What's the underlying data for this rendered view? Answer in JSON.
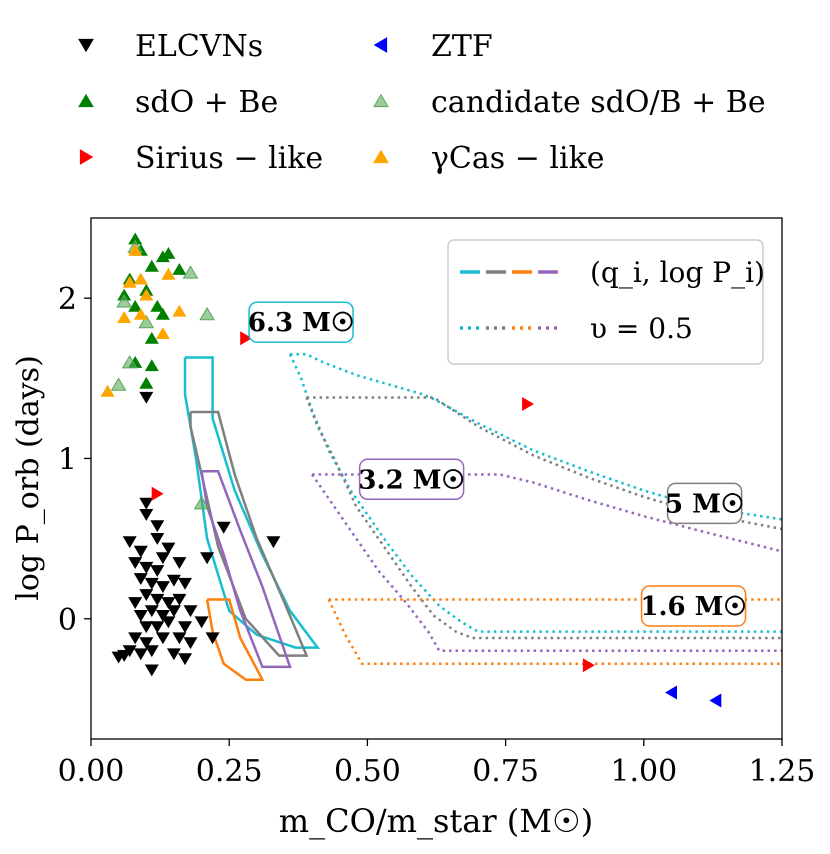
{
  "chart_data": {
    "type": "scatter",
    "xlabel": "m_CO/m_star (M☉)",
    "ylabel": "log P_orb (days)",
    "xlim": [
      0.0,
      1.25
    ],
    "ylim": [
      -0.75,
      2.5
    ],
    "x_ticks": [
      "0.00",
      "0.25",
      "0.50",
      "0.75",
      "1.00",
      "1.25"
    ],
    "y_ticks": [
      "0",
      "1",
      "2"
    ],
    "grid": false,
    "top_legend": [
      {
        "label": "ELCVNs",
        "marker": "triangle-down",
        "color": "#000000"
      },
      {
        "label": "ZTF",
        "marker": "triangle-left",
        "color": "#0000ff"
      },
      {
        "label": "sdO + Be",
        "marker": "triangle-up",
        "color": "#008000"
      },
      {
        "label": "candidate sdO/B + Be",
        "marker": "triangle-up",
        "color": "#5aa85a"
      },
      {
        "label": "Sirius − like",
        "marker": "triangle-right",
        "color": "#ff0000"
      },
      {
        "label": "γCas − like",
        "marker": "triangle-up",
        "color": "#ffa500"
      }
    ],
    "inner_legend": [
      {
        "label": "(q_i, log P_i)",
        "style": "dashed",
        "colors": [
          "#17becf",
          "#7f7f7f",
          "#ff7f0e",
          "#9467bd"
        ]
      },
      {
        "label": "υ = 0.5",
        "style": "dotted",
        "colors": [
          "#17becf",
          "#7f7f7f",
          "#ff7f0e",
          "#9467bd"
        ]
      }
    ],
    "mass_labels": [
      {
        "text": "6.3 M☉",
        "color": "#17becf",
        "x": 0.38,
        "y": 1.85
      },
      {
        "text": "3.2 M☉",
        "color": "#9467bd",
        "x": 0.58,
        "y": 0.87
      },
      {
        "text": "5 M☉",
        "color": "#7f7f7f",
        "x": 1.11,
        "y": 0.72
      },
      {
        "text": "1.6 M☉",
        "color": "#ff7f0e",
        "x": 1.09,
        "y": 0.08
      }
    ],
    "series": [
      {
        "name": "ELCVNs",
        "marker": "triangle-down",
        "color": "#000000",
        "points": [
          [
            0.1,
            1.38
          ],
          [
            0.1,
            0.72
          ],
          [
            0.1,
            0.65
          ],
          [
            0.12,
            0.58
          ],
          [
            0.07,
            0.48
          ],
          [
            0.09,
            0.42
          ],
          [
            0.12,
            0.5
          ],
          [
            0.14,
            0.44
          ],
          [
            0.08,
            0.35
          ],
          [
            0.1,
            0.32
          ],
          [
            0.12,
            0.3
          ],
          [
            0.13,
            0.38
          ],
          [
            0.16,
            0.35
          ],
          [
            0.09,
            0.25
          ],
          [
            0.11,
            0.22
          ],
          [
            0.13,
            0.2
          ],
          [
            0.15,
            0.24
          ],
          [
            0.17,
            0.22
          ],
          [
            0.1,
            0.15
          ],
          [
            0.12,
            0.12
          ],
          [
            0.08,
            0.1
          ],
          [
            0.14,
            0.1
          ],
          [
            0.16,
            0.12
          ],
          [
            0.09,
            0.02
          ],
          [
            0.11,
            0.05
          ],
          [
            0.13,
            0.02
          ],
          [
            0.15,
            0.05
          ],
          [
            0.18,
            0.05
          ],
          [
            0.1,
            -0.05
          ],
          [
            0.12,
            -0.05
          ],
          [
            0.14,
            -0.02
          ],
          [
            0.17,
            -0.05
          ],
          [
            0.2,
            -0.02
          ],
          [
            0.08,
            -0.12
          ],
          [
            0.1,
            -0.15
          ],
          [
            0.13,
            -0.12
          ],
          [
            0.16,
            -0.12
          ],
          [
            0.18,
            -0.15
          ],
          [
            0.22,
            -0.12
          ],
          [
            0.07,
            -0.2
          ],
          [
            0.09,
            -0.22
          ],
          [
            0.11,
            -0.2
          ],
          [
            0.15,
            -0.22
          ],
          [
            0.17,
            -0.25
          ],
          [
            0.06,
            -0.23
          ],
          [
            0.05,
            -0.24
          ],
          [
            0.11,
            -0.32
          ],
          [
            0.24,
            0.57
          ],
          [
            0.21,
            0.38
          ],
          [
            0.33,
            0.48
          ]
        ]
      },
      {
        "name": "sdO + Be",
        "marker": "triangle-up",
        "color": "#008000",
        "points": [
          [
            0.08,
            2.37
          ],
          [
            0.09,
            2.3
          ],
          [
            0.11,
            2.2
          ],
          [
            0.13,
            2.26
          ],
          [
            0.14,
            2.28
          ],
          [
            0.16,
            2.18
          ],
          [
            0.07,
            2.12
          ],
          [
            0.1,
            2.05
          ],
          [
            0.06,
            2.02
          ],
          [
            0.08,
            1.95
          ],
          [
            0.12,
            1.95
          ],
          [
            0.13,
            1.9
          ],
          [
            0.11,
            1.75
          ],
          [
            0.08,
            1.6
          ],
          [
            0.11,
            1.58
          ],
          [
            0.1,
            1.47
          ]
        ]
      },
      {
        "name": "candidate sdO/B + Be",
        "marker": "triangle-up",
        "color": "#5aa85a",
        "alpha": 0.6,
        "points": [
          [
            0.08,
            2.32
          ],
          [
            0.18,
            2.16
          ],
          [
            0.06,
            1.98
          ],
          [
            0.1,
            1.85
          ],
          [
            0.21,
            1.9
          ],
          [
            0.07,
            1.6
          ],
          [
            0.05,
            1.46
          ],
          [
            0.2,
            0.72
          ]
        ]
      },
      {
        "name": "γCas − like",
        "marker": "triangle-up",
        "color": "#ffa500",
        "points": [
          [
            0.08,
            2.3
          ],
          [
            0.07,
            2.1
          ],
          [
            0.09,
            2.12
          ],
          [
            0.14,
            2.15
          ],
          [
            0.1,
            2.02
          ],
          [
            0.06,
            1.88
          ],
          [
            0.09,
            1.9
          ],
          [
            0.16,
            1.92
          ],
          [
            0.13,
            1.78
          ],
          [
            0.03,
            1.42
          ]
        ]
      },
      {
        "name": "Sirius − like",
        "marker": "triangle-right",
        "color": "#ff0000",
        "points": [
          [
            0.28,
            1.75
          ],
          [
            0.79,
            1.34
          ],
          [
            0.12,
            0.78
          ],
          [
            0.9,
            -0.29
          ]
        ]
      },
      {
        "name": "ZTF",
        "marker": "triangle-left",
        "color": "#0000ff",
        "points": [
          [
            1.05,
            -0.46
          ],
          [
            1.13,
            -0.51
          ]
        ]
      }
    ],
    "solid_regions": [
      {
        "color": "#17becf",
        "points": [
          [
            0.17,
            1.63
          ],
          [
            0.22,
            1.63
          ],
          [
            0.22,
            1.25
          ],
          [
            0.26,
            0.8
          ],
          [
            0.31,
            0.4
          ],
          [
            0.36,
            0.05
          ],
          [
            0.41,
            -0.18
          ],
          [
            0.37,
            -0.18
          ],
          [
            0.3,
            -0.1
          ],
          [
            0.25,
            0.05
          ],
          [
            0.21,
            0.5
          ],
          [
            0.19,
            1.0
          ],
          [
            0.17,
            1.4
          ],
          [
            0.17,
            1.63
          ]
        ]
      },
      {
        "color": "#7f7f7f",
        "points": [
          [
            0.18,
            1.29
          ],
          [
            0.23,
            1.29
          ],
          [
            0.26,
            0.9
          ],
          [
            0.3,
            0.5
          ],
          [
            0.35,
            0.1
          ],
          [
            0.39,
            -0.23
          ],
          [
            0.34,
            -0.23
          ],
          [
            0.28,
            0.0
          ],
          [
            0.23,
            0.45
          ],
          [
            0.2,
            0.9
          ],
          [
            0.18,
            1.2
          ],
          [
            0.18,
            1.29
          ]
        ]
      },
      {
        "color": "#9467bd",
        "points": [
          [
            0.2,
            0.92
          ],
          [
            0.23,
            0.92
          ],
          [
            0.27,
            0.55
          ],
          [
            0.31,
            0.2
          ],
          [
            0.36,
            -0.3
          ],
          [
            0.31,
            -0.3
          ],
          [
            0.27,
            0.05
          ],
          [
            0.24,
            0.4
          ],
          [
            0.21,
            0.7
          ],
          [
            0.2,
            0.92
          ]
        ]
      },
      {
        "color": "#ff7f0e",
        "points": [
          [
            0.21,
            0.12
          ],
          [
            0.25,
            0.12
          ],
          [
            0.27,
            -0.12
          ],
          [
            0.31,
            -0.38
          ],
          [
            0.28,
            -0.38
          ],
          [
            0.24,
            -0.28
          ],
          [
            0.22,
            -0.08
          ],
          [
            0.21,
            0.12
          ]
        ]
      }
    ],
    "dotted_curves": [
      {
        "color": "#17becf",
        "points": [
          [
            0.36,
            1.65
          ],
          [
            0.39,
            1.65
          ],
          [
            0.42,
            1.6
          ],
          [
            0.48,
            1.52
          ],
          [
            0.55,
            1.45
          ],
          [
            0.6,
            1.4
          ],
          [
            0.62,
            1.37
          ],
          [
            0.7,
            1.22
          ],
          [
            0.8,
            1.05
          ],
          [
            0.9,
            0.92
          ],
          [
            1.0,
            0.8
          ],
          [
            1.1,
            0.7
          ],
          [
            1.25,
            0.62
          ]
        ]
      },
      {
        "color": "#17becf",
        "points": [
          [
            0.36,
            1.65
          ],
          [
            0.38,
            1.5
          ],
          [
            0.4,
            1.3
          ],
          [
            0.43,
            1.05
          ],
          [
            0.47,
            0.8
          ],
          [
            0.53,
            0.5
          ],
          [
            0.58,
            0.27
          ],
          [
            0.63,
            0.08
          ],
          [
            0.67,
            -0.02
          ],
          [
            0.7,
            -0.08
          ],
          [
            0.8,
            -0.08
          ],
          [
            1.0,
            -0.08
          ],
          [
            1.25,
            -0.08
          ]
        ]
      },
      {
        "color": "#7f7f7f",
        "points": [
          [
            0.39,
            1.38
          ],
          [
            0.62,
            1.38
          ],
          [
            0.7,
            1.2
          ],
          [
            0.8,
            1.02
          ],
          [
            0.9,
            0.88
          ],
          [
            1.0,
            0.76
          ],
          [
            1.1,
            0.66
          ],
          [
            1.25,
            0.56
          ]
        ]
      },
      {
        "color": "#7f7f7f",
        "points": [
          [
            0.39,
            1.38
          ],
          [
            0.41,
            1.2
          ],
          [
            0.44,
            1.0
          ],
          [
            0.48,
            0.7
          ],
          [
            0.53,
            0.45
          ],
          [
            0.58,
            0.2
          ],
          [
            0.62,
            0.02
          ],
          [
            0.66,
            -0.08
          ],
          [
            0.69,
            -0.12
          ],
          [
            0.8,
            -0.12
          ],
          [
            1.0,
            -0.12
          ],
          [
            1.25,
            -0.12
          ]
        ]
      },
      {
        "color": "#9467bd",
        "points": [
          [
            0.4,
            0.9
          ],
          [
            0.74,
            0.9
          ],
          [
            0.8,
            0.85
          ],
          [
            0.9,
            0.74
          ],
          [
            1.0,
            0.64
          ],
          [
            1.1,
            0.55
          ],
          [
            1.25,
            0.42
          ]
        ]
      },
      {
        "color": "#9467bd",
        "points": [
          [
            0.4,
            0.9
          ],
          [
            0.44,
            0.7
          ],
          [
            0.48,
            0.5
          ],
          [
            0.52,
            0.3
          ],
          [
            0.57,
            0.1
          ],
          [
            0.61,
            -0.08
          ],
          [
            0.63,
            -0.2
          ],
          [
            0.7,
            -0.2
          ],
          [
            0.9,
            -0.2
          ],
          [
            1.25,
            -0.2
          ]
        ]
      },
      {
        "color": "#ff7f0e",
        "points": [
          [
            0.43,
            0.12
          ],
          [
            1.25,
            0.12
          ]
        ]
      },
      {
        "color": "#ff7f0e",
        "points": [
          [
            0.43,
            0.12
          ],
          [
            0.46,
            -0.1
          ],
          [
            0.49,
            -0.28
          ],
          [
            0.6,
            -0.28
          ],
          [
            0.8,
            -0.28
          ],
          [
            1.0,
            -0.28
          ],
          [
            1.25,
            -0.28
          ]
        ]
      }
    ]
  }
}
